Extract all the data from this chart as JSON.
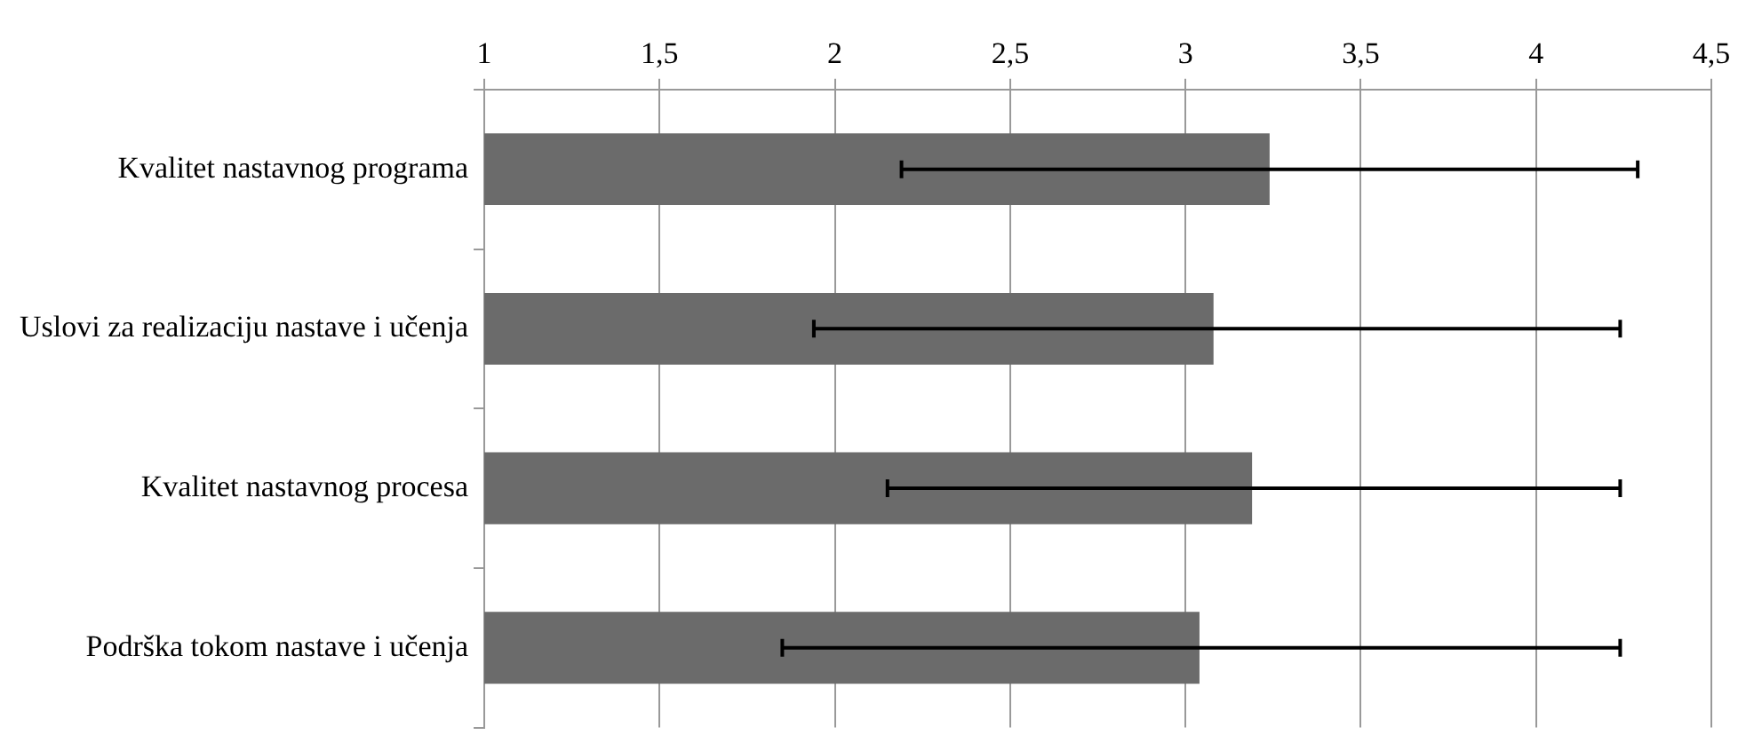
{
  "chart_data": {
    "type": "bar",
    "orientation": "horizontal",
    "categories": [
      "Kvalitet nastavnog programa",
      "Uslovi za realizaciju nastave i učenja",
      "Kvalitet nastavnog procesa",
      "Podrška tokom nastave i učenja"
    ],
    "values": [
      3.24,
      3.08,
      3.19,
      3.04
    ],
    "color": "#6b6b6b",
    "errors": [
      [
        2.19,
        4.29
      ],
      [
        1.94,
        4.24
      ],
      [
        2.15,
        4.24
      ],
      [
        1.85,
        4.24
      ]
    ],
    "xlim": [
      1,
      4.5
    ],
    "xticks": [
      1,
      {
        "value": 1.5,
        "label": "1,5"
      },
      2,
      {
        "value": 2.5,
        "label": "2,5"
      },
      3,
      {
        "value": 3.5,
        "label": "3,5"
      },
      4,
      {
        "value": 4.5,
        "label": "4,5"
      }
    ],
    "grid": "x",
    "legend": false
  }
}
